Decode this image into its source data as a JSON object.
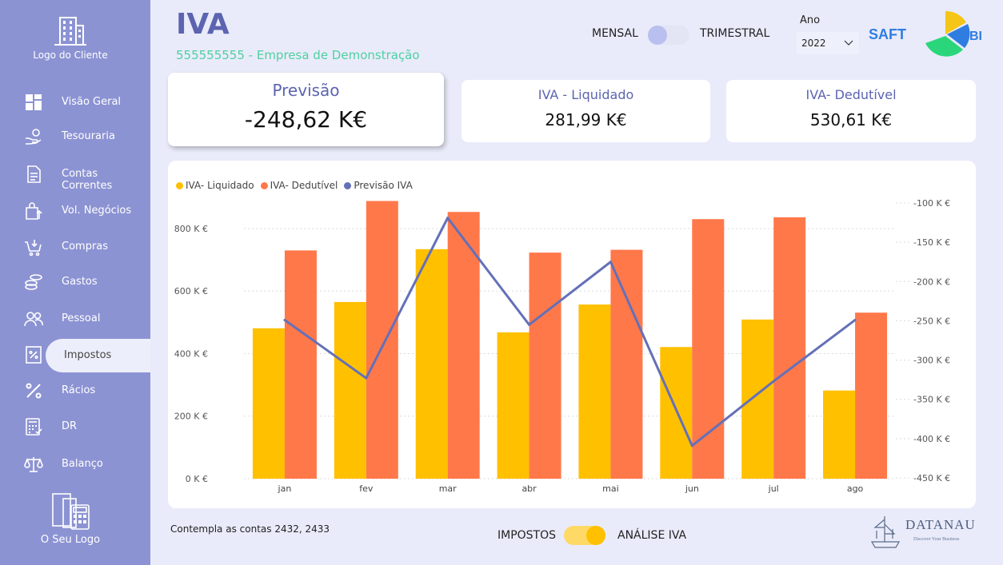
{
  "sidebar": {
    "client_logo_label": "Logo do Cliente",
    "items": [
      {
        "label": "Visão Geral",
        "icon": "dashboard-icon"
      },
      {
        "label": "Tesouraria",
        "icon": "hand-coin-icon"
      },
      {
        "label": "Contas Correntes",
        "icon": "document-icon"
      },
      {
        "label": "Vol. Negócios",
        "icon": "bag-up-icon"
      },
      {
        "label": "Compras",
        "icon": "cart-icon"
      },
      {
        "label": "Gastos",
        "icon": "coins-icon"
      },
      {
        "label": "Pessoal",
        "icon": "people-icon"
      },
      {
        "label": "Impostos",
        "icon": "tax-icon",
        "active": true
      },
      {
        "label": "Rácios",
        "icon": "percent-icon"
      },
      {
        "label": "DR",
        "icon": "calculator-icon"
      },
      {
        "label": "Balanço",
        "icon": "scale-icon"
      }
    ],
    "own_logo_label": "O Seu Logo"
  },
  "header": {
    "title": "IVA",
    "subtitle": "555555555 - Empresa de Demonstração",
    "period_toggle": {
      "left": "MENSAL",
      "right": "TRIMESTRAL",
      "state": "MENSAL"
    },
    "year_label": "Ano",
    "year_value": "2022",
    "brand_text": "SAFT",
    "brand_suffix": "BI"
  },
  "kpis": {
    "previsao": {
      "title": "Previsão",
      "value": "-248,62 K€"
    },
    "liquidado": {
      "title": "IVA - Liquidado",
      "value": "281,99 K€"
    },
    "dedutivel": {
      "title": "IVA- Dedutível",
      "value": "530,61 K€"
    }
  },
  "chart_data": {
    "type": "bar",
    "categories": [
      "jan",
      "fev",
      "mar",
      "abr",
      "mai",
      "jun",
      "jul",
      "ago"
    ],
    "series": [
      {
        "name": "IVA- Liquidado",
        "type": "bar",
        "color": "#ffc000",
        "axis": "left",
        "values": [
          481,
          565,
          734,
          468,
          557,
          421,
          509,
          282
        ]
      },
      {
        "name": "IVA- Dedutível",
        "type": "bar",
        "color": "#ff784a",
        "axis": "left",
        "values": [
          730,
          888,
          853,
          723,
          732,
          830,
          836,
          531
        ]
      },
      {
        "name": "Previsão IVA",
        "type": "line",
        "color": "#6470b8",
        "axis": "right",
        "values": [
          -249,
          -323,
          -119,
          -255,
          -175,
          -409,
          -327,
          -249
        ]
      }
    ],
    "left_axis": {
      "ticks": [
        "0 K €",
        "200 K €",
        "400 K €",
        "600 K €",
        "800 K €"
      ],
      "ylim": [
        0,
        920
      ]
    },
    "right_axis": {
      "ticks": [
        "-100 K €",
        "-150 K €",
        "-200 K €",
        "-250 K €",
        "-300 K €",
        "-350 K €",
        "-400 K €",
        "-450 K €"
      ],
      "ylim": [
        -450,
        -100
      ]
    },
    "grid": true,
    "legend": "top-left"
  },
  "footer": {
    "note": "Contempla as contas 2432, 2433",
    "view_toggle": {
      "left": "IMPOSTOS",
      "right": "ANÁLISE IVA",
      "state": "ANÁLISE IVA"
    },
    "company_logo": "DATANAU",
    "company_tagline": "Discover Your Business"
  },
  "colors": {
    "sidebar": "#8c93d3",
    "accent": "#5c64b0",
    "subtitle": "#4fd0a0",
    "liquidado": "#ffc000",
    "dedutivel": "#ff784a",
    "previsao_line": "#6470b8"
  }
}
